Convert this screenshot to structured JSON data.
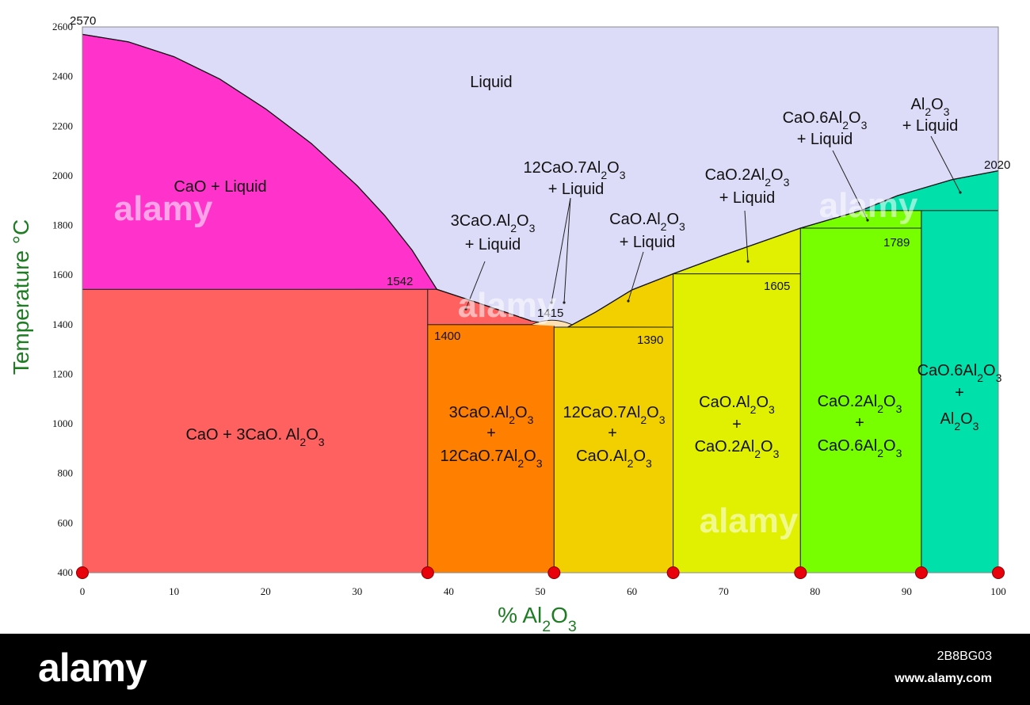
{
  "chart_data": {
    "type": "area",
    "title": "",
    "xlabel": "% Al2O3",
    "ylabel": "Temperature °C",
    "xlim": [
      0,
      100
    ],
    "ylim": [
      400,
      2600
    ],
    "x_ticks": [
      0,
      10,
      20,
      30,
      40,
      50,
      60,
      70,
      80,
      90,
      100
    ],
    "y_ticks": [
      400,
      600,
      800,
      1000,
      1200,
      1400,
      1600,
      1800,
      2000,
      2200,
      2400,
      2600
    ],
    "liquidus_left": [
      [
        0,
        2570
      ],
      [
        5,
        2540
      ],
      [
        10,
        2480
      ],
      [
        15,
        2390
      ],
      [
        20,
        2270
      ],
      [
        25,
        2130
      ],
      [
        30,
        1960
      ],
      [
        33,
        1840
      ],
      [
        36,
        1700
      ],
      [
        38.7,
        1542
      ]
    ],
    "liquidus_mid": [
      [
        38.7,
        1542
      ],
      [
        43,
        1490
      ],
      [
        47,
        1440
      ],
      [
        49,
        1415
      ]
    ],
    "liquidus_right": [
      [
        53,
        1390
      ],
      [
        56,
        1450
      ],
      [
        60,
        1540
      ],
      [
        64.5,
        1605
      ],
      [
        70,
        1680
      ],
      [
        78.4,
        1789
      ],
      [
        85,
        1860
      ],
      [
        89,
        1920
      ],
      [
        95,
        1985
      ],
      [
        100,
        2020
      ]
    ],
    "compounds": [
      {
        "name": "C3A",
        "x": 37.7
      },
      {
        "name": "C12A7",
        "x": 51.5
      },
      {
        "name": "CA",
        "x": 64.5
      },
      {
        "name": "CA2",
        "x": 78.4
      },
      {
        "name": "CA6",
        "x": 91.6
      }
    ],
    "invariant_temps": [
      {
        "label": "2570",
        "x": 0,
        "t": 2570
      },
      {
        "label": "1542",
        "x": 37.7,
        "t": 1542
      },
      {
        "label": "1400",
        "x": 37.7,
        "t": 1400
      },
      {
        "label": "1415",
        "x": 51.5,
        "t": 1415
      },
      {
        "label": "1390",
        "x": 64.5,
        "t": 1390
      },
      {
        "label": "1605",
        "x": 78.4,
        "t": 1605
      },
      {
        "label": "1789",
        "x": 91.6,
        "t": 1789
      },
      {
        "label": "2020",
        "x": 100,
        "t": 2020
      }
    ],
    "regions": [
      {
        "label": "Liquid",
        "color": "#dcdcf8"
      },
      {
        "label": "CaO + Liquid",
        "color": "#ff33cc"
      },
      {
        "label": "CaO + 3CaO. Al2O3",
        "color": "#ff6060"
      },
      {
        "label": "3CaO.Al2O3 + Liquid",
        "color": "#ff6060"
      },
      {
        "label": "3CaO.Al2O3 + 12CaO.7Al2O3",
        "color": "#ff8000"
      },
      {
        "label": "12CaO.7Al2O3 + Liquid",
        "color": "#ffe0b0"
      },
      {
        "label": "12CaO.7Al2O3 + CaO.Al2O3",
        "color": "#f2d000"
      },
      {
        "label": "CaO.Al2O3 + Liquid",
        "color": "#f2d000"
      },
      {
        "label": "CaO.Al2O3 + CaO.2Al2O3",
        "color": "#e0f000"
      },
      {
        "label": "CaO.2Al2O3 + Liquid",
        "color": "#e0f000"
      },
      {
        "label": "CaO.2Al2O3 + CaO.6Al2O3",
        "color": "#77ff00"
      },
      {
        "label": "CaO.6Al2O3 + Liquid",
        "color": "#77ff00"
      },
      {
        "label": "CaO.6Al2O3 + Al2O3",
        "color": "#00e0aa"
      },
      {
        "label": "Al2O3 + Liquid",
        "color": "#00e0aa"
      }
    ]
  },
  "footer": {
    "brand": "alamy",
    "image_id": "2B8BG03",
    "url": "www.alamy.com"
  },
  "watermark": "alamy"
}
